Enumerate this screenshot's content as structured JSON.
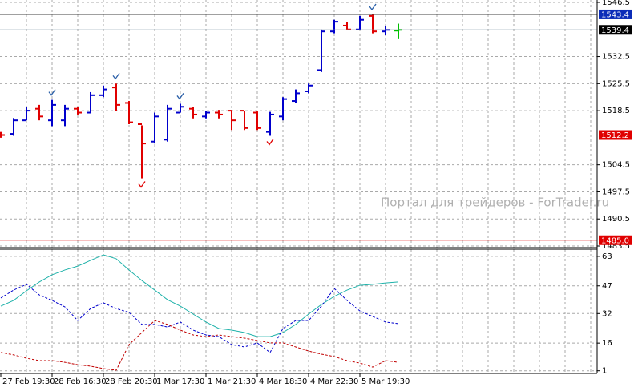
{
  "chart_data": [
    {
      "type": "ohlc",
      "open": [
        1512.5,
        1512.5,
        1516,
        1519,
        1516,
        1516,
        1519,
        1518,
        1522.5,
        1524.5,
        1520.5,
        1515,
        1510.5,
        1511,
        1518,
        1519,
        1517,
        1518,
        1518.5,
        1518.5,
        1518,
        1513,
        1517,
        1521,
        1523.5,
        1529,
        1539,
        1540.5,
        1539.5,
        1543,
        1539,
        1539.2
      ],
      "high": [
        1513,
        1516.6,
        1519.5,
        1520,
        1521.3,
        1520,
        1519.5,
        1523.3,
        1525,
        1525.5,
        1521,
        1514.7,
        1518,
        1520,
        1520.3,
        1519.5,
        1518.5,
        1518.7,
        1518.5,
        1518.5,
        1518.3,
        1518.2,
        1522,
        1524,
        1525.5,
        1539.5,
        1542,
        1541.5,
        1543,
        1543.4,
        1540.5,
        1541
      ],
      "low": [
        1511.5,
        1512,
        1516,
        1516,
        1514.5,
        1514.5,
        1517.5,
        1518,
        1522,
        1518.5,
        1515,
        1501,
        1510,
        1510.5,
        1518,
        1516.5,
        1516.5,
        1516.5,
        1513.5,
        1513.5,
        1513.5,
        1512,
        1516,
        1520.5,
        1523,
        1528.5,
        1538.5,
        1539.3,
        1539.3,
        1538.5,
        1538,
        1537
      ],
      "close": [
        1512.2,
        1516,
        1518.5,
        1517,
        1520,
        1519,
        1518,
        1522.5,
        1524,
        1520,
        1515.5,
        1510,
        1517,
        1519,
        1519.5,
        1517.5,
        1518,
        1517.5,
        1516,
        1514,
        1514,
        1517.5,
        1521.5,
        1523,
        1525,
        1539,
        1541.5,
        1539.5,
        1542,
        1539,
        1539.4,
        1539.4
      ],
      "fractals_up": [
        null,
        null,
        null,
        null,
        1521.3,
        null,
        null,
        null,
        null,
        1525.5,
        null,
        null,
        null,
        null,
        1520.3,
        null,
        null,
        null,
        null,
        null,
        null,
        null,
        null,
        null,
        null,
        null,
        null,
        null,
        null,
        1543.4,
        null,
        null
      ],
      "fractals_down": [
        null,
        null,
        null,
        null,
        null,
        null,
        null,
        null,
        null,
        null,
        null,
        1501,
        null,
        null,
        null,
        null,
        null,
        null,
        null,
        null,
        null,
        1512,
        null,
        null,
        null,
        null,
        null,
        null,
        null,
        null,
        null,
        null
      ],
      "up_color": "#0000cc",
      "down_color": "#e00000",
      "current_color": "#00c000",
      "fractal_color": "#2a5fa8",
      "fractal_down_color": "#e00000",
      "ylim": [
        1483.5,
        1546.5
      ],
      "yticks": [
        1546.5,
        1532.5,
        1525.5,
        1518.5,
        1504.5,
        1497.5,
        1490.5,
        1483.5
      ],
      "grid": true,
      "hlines": [
        {
          "value": 1543.4,
          "color": "#404040",
          "box": "#0b2cb8"
        },
        {
          "value": 1539.4,
          "color": "#7f95a6",
          "box": "#000000"
        },
        {
          "value": 1512.2,
          "color": "#e00000",
          "box": "#e00000"
        },
        {
          "value": 1485,
          "label": "1485.0",
          "color": "#e00000",
          "box": "#e00000"
        }
      ],
      "annotation": "Портал для трейдеров - ForTrader.ru"
    },
    {
      "type": "line",
      "categories": [
        "27 Feb 19:30",
        null,
        null,
        null,
        "28 Feb 16:30",
        null,
        null,
        null,
        "28 Feb 20:30",
        null,
        null,
        null,
        "1 Mar 17:30",
        null,
        null,
        null,
        "1 Mar 21:30",
        null,
        null,
        null,
        "4 Mar 18:30",
        null,
        null,
        null,
        "4 Mar 22:30",
        null,
        null,
        null,
        "5 Mar 19:30",
        null,
        null,
        null
      ],
      "series": [
        {
          "color": "#20b2aa",
          "dash": false,
          "values": [
            36.0,
            39.1,
            44.3,
            49.1,
            53.0,
            55.6,
            57.7,
            60.8,
            63.8,
            61.7,
            55.6,
            49.9,
            44.7,
            39.5,
            36.0,
            31.7,
            27.4,
            23.9,
            23.0,
            21.7,
            19.5,
            19.5,
            21.7,
            26.1,
            31.7,
            36.9,
            41.3,
            44.7,
            47.3,
            47.8,
            48.6,
            49.1
          ]
        },
        {
          "color": "#0000cc",
          "dash": true,
          "values": [
            40.4,
            44.7,
            47.8,
            42.1,
            39.1,
            35.6,
            28.2,
            34.7,
            37.8,
            34.7,
            32.6,
            26.1,
            26.1,
            24.7,
            27.4,
            23.0,
            20.4,
            19.5,
            15.2,
            13.9,
            16.1,
            10.9,
            23.9,
            28.2,
            28.2,
            36.0,
            45.6,
            39.1,
            33.4,
            30.4,
            27.4,
            26.5
          ]
        },
        {
          "color": "#c00000",
          "dash": true,
          "values": [
            10.9,
            9.6,
            7.8,
            6.5,
            6.5,
            5.6,
            4.3,
            3.5,
            2.2,
            1.3,
            15.2,
            21.7,
            28.2,
            26.1,
            23.0,
            20.4,
            19.5,
            20.4,
            19.5,
            18.7,
            17.4,
            16.1,
            16.1,
            13.9,
            11.7,
            10.0,
            8.7,
            6.5,
            5.2,
            3.0,
            6.5,
            5.6
          ]
        }
      ],
      "ylim": [
        0,
        66
      ],
      "yticks": [
        63,
        47,
        32,
        16,
        1
      ],
      "grid": true
    }
  ]
}
